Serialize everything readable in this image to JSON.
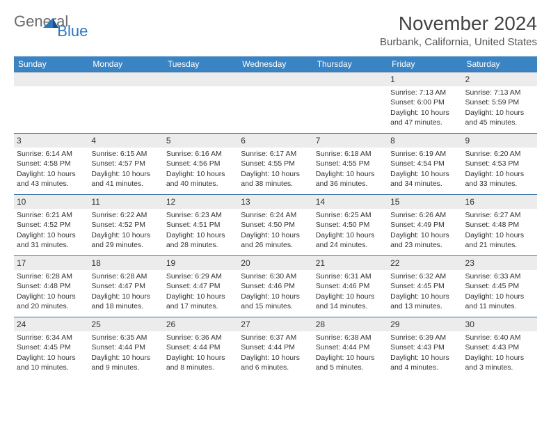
{
  "logo": {
    "text1": "General",
    "text2": "Blue"
  },
  "title": "November 2024",
  "location": "Burbank, California, United States",
  "colors": {
    "header_bg": "#3b84c4",
    "header_text": "#ffffff",
    "row_border": "#3b6fa0",
    "alt_row_bg": "#ececec",
    "logo_blue": "#2f77bc",
    "logo_gray": "#6a6a6a",
    "body_text": "#333333"
  },
  "day_headers": [
    "Sunday",
    "Monday",
    "Tuesday",
    "Wednesday",
    "Thursday",
    "Friday",
    "Saturday"
  ],
  "weeks": [
    [
      null,
      null,
      null,
      null,
      null,
      {
        "n": "1",
        "sr": "Sunrise: 7:13 AM",
        "ss": "Sunset: 6:00 PM",
        "dl1": "Daylight: 10 hours",
        "dl2": "and 47 minutes."
      },
      {
        "n": "2",
        "sr": "Sunrise: 7:13 AM",
        "ss": "Sunset: 5:59 PM",
        "dl1": "Daylight: 10 hours",
        "dl2": "and 45 minutes."
      }
    ],
    [
      {
        "n": "3",
        "sr": "Sunrise: 6:14 AM",
        "ss": "Sunset: 4:58 PM",
        "dl1": "Daylight: 10 hours",
        "dl2": "and 43 minutes."
      },
      {
        "n": "4",
        "sr": "Sunrise: 6:15 AM",
        "ss": "Sunset: 4:57 PM",
        "dl1": "Daylight: 10 hours",
        "dl2": "and 41 minutes."
      },
      {
        "n": "5",
        "sr": "Sunrise: 6:16 AM",
        "ss": "Sunset: 4:56 PM",
        "dl1": "Daylight: 10 hours",
        "dl2": "and 40 minutes."
      },
      {
        "n": "6",
        "sr": "Sunrise: 6:17 AM",
        "ss": "Sunset: 4:55 PM",
        "dl1": "Daylight: 10 hours",
        "dl2": "and 38 minutes."
      },
      {
        "n": "7",
        "sr": "Sunrise: 6:18 AM",
        "ss": "Sunset: 4:55 PM",
        "dl1": "Daylight: 10 hours",
        "dl2": "and 36 minutes."
      },
      {
        "n": "8",
        "sr": "Sunrise: 6:19 AM",
        "ss": "Sunset: 4:54 PM",
        "dl1": "Daylight: 10 hours",
        "dl2": "and 34 minutes."
      },
      {
        "n": "9",
        "sr": "Sunrise: 6:20 AM",
        "ss": "Sunset: 4:53 PM",
        "dl1": "Daylight: 10 hours",
        "dl2": "and 33 minutes."
      }
    ],
    [
      {
        "n": "10",
        "sr": "Sunrise: 6:21 AM",
        "ss": "Sunset: 4:52 PM",
        "dl1": "Daylight: 10 hours",
        "dl2": "and 31 minutes."
      },
      {
        "n": "11",
        "sr": "Sunrise: 6:22 AM",
        "ss": "Sunset: 4:52 PM",
        "dl1": "Daylight: 10 hours",
        "dl2": "and 29 minutes."
      },
      {
        "n": "12",
        "sr": "Sunrise: 6:23 AM",
        "ss": "Sunset: 4:51 PM",
        "dl1": "Daylight: 10 hours",
        "dl2": "and 28 minutes."
      },
      {
        "n": "13",
        "sr": "Sunrise: 6:24 AM",
        "ss": "Sunset: 4:50 PM",
        "dl1": "Daylight: 10 hours",
        "dl2": "and 26 minutes."
      },
      {
        "n": "14",
        "sr": "Sunrise: 6:25 AM",
        "ss": "Sunset: 4:50 PM",
        "dl1": "Daylight: 10 hours",
        "dl2": "and 24 minutes."
      },
      {
        "n": "15",
        "sr": "Sunrise: 6:26 AM",
        "ss": "Sunset: 4:49 PM",
        "dl1": "Daylight: 10 hours",
        "dl2": "and 23 minutes."
      },
      {
        "n": "16",
        "sr": "Sunrise: 6:27 AM",
        "ss": "Sunset: 4:48 PM",
        "dl1": "Daylight: 10 hours",
        "dl2": "and 21 minutes."
      }
    ],
    [
      {
        "n": "17",
        "sr": "Sunrise: 6:28 AM",
        "ss": "Sunset: 4:48 PM",
        "dl1": "Daylight: 10 hours",
        "dl2": "and 20 minutes."
      },
      {
        "n": "18",
        "sr": "Sunrise: 6:28 AM",
        "ss": "Sunset: 4:47 PM",
        "dl1": "Daylight: 10 hours",
        "dl2": "and 18 minutes."
      },
      {
        "n": "19",
        "sr": "Sunrise: 6:29 AM",
        "ss": "Sunset: 4:47 PM",
        "dl1": "Daylight: 10 hours",
        "dl2": "and 17 minutes."
      },
      {
        "n": "20",
        "sr": "Sunrise: 6:30 AM",
        "ss": "Sunset: 4:46 PM",
        "dl1": "Daylight: 10 hours",
        "dl2": "and 15 minutes."
      },
      {
        "n": "21",
        "sr": "Sunrise: 6:31 AM",
        "ss": "Sunset: 4:46 PM",
        "dl1": "Daylight: 10 hours",
        "dl2": "and 14 minutes."
      },
      {
        "n": "22",
        "sr": "Sunrise: 6:32 AM",
        "ss": "Sunset: 4:45 PM",
        "dl1": "Daylight: 10 hours",
        "dl2": "and 13 minutes."
      },
      {
        "n": "23",
        "sr": "Sunrise: 6:33 AM",
        "ss": "Sunset: 4:45 PM",
        "dl1": "Daylight: 10 hours",
        "dl2": "and 11 minutes."
      }
    ],
    [
      {
        "n": "24",
        "sr": "Sunrise: 6:34 AM",
        "ss": "Sunset: 4:45 PM",
        "dl1": "Daylight: 10 hours",
        "dl2": "and 10 minutes."
      },
      {
        "n": "25",
        "sr": "Sunrise: 6:35 AM",
        "ss": "Sunset: 4:44 PM",
        "dl1": "Daylight: 10 hours",
        "dl2": "and 9 minutes."
      },
      {
        "n": "26",
        "sr": "Sunrise: 6:36 AM",
        "ss": "Sunset: 4:44 PM",
        "dl1": "Daylight: 10 hours",
        "dl2": "and 8 minutes."
      },
      {
        "n": "27",
        "sr": "Sunrise: 6:37 AM",
        "ss": "Sunset: 4:44 PM",
        "dl1": "Daylight: 10 hours",
        "dl2": "and 6 minutes."
      },
      {
        "n": "28",
        "sr": "Sunrise: 6:38 AM",
        "ss": "Sunset: 4:44 PM",
        "dl1": "Daylight: 10 hours",
        "dl2": "and 5 minutes."
      },
      {
        "n": "29",
        "sr": "Sunrise: 6:39 AM",
        "ss": "Sunset: 4:43 PM",
        "dl1": "Daylight: 10 hours",
        "dl2": "and 4 minutes."
      },
      {
        "n": "30",
        "sr": "Sunrise: 6:40 AM",
        "ss": "Sunset: 4:43 PM",
        "dl1": "Daylight: 10 hours",
        "dl2": "and 3 minutes."
      }
    ]
  ]
}
